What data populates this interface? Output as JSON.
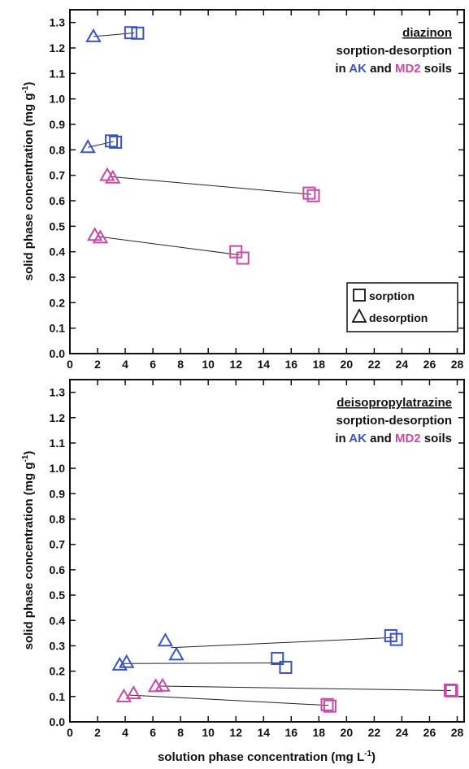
{
  "colors": {
    "AK": "#3a53c4",
    "MD2": "#c94aa6",
    "line": "#222222"
  },
  "shared": {
    "xlabel": "solution phase concentration (mg L",
    "xlabel_sup": "-1",
    "xlabel_end": ")",
    "ylabel": "solid phase concentration (mg g",
    "ylabel_sup": "-1",
    "ylabel_end": ")",
    "legend": {
      "sorption": "sorption",
      "desorption": "desorption"
    }
  },
  "chart_data": [
    {
      "type": "scatter",
      "title": "diazinon",
      "subtitle": "sorption-desorption",
      "subtitle2_pre": "in ",
      "subtitle2_ak": "AK",
      "subtitle2_mid": " and ",
      "subtitle2_md2": "MD2",
      "subtitle2_post": " soils",
      "xlim": [
        0,
        28.5
      ],
      "ylim": [
        0,
        1.35
      ],
      "xticks": [
        "0",
        "2",
        "4",
        "6",
        "8",
        "10",
        "12",
        "14",
        "16",
        "18",
        "20",
        "22",
        "24",
        "26",
        "28"
      ],
      "yticks": [
        "0.0",
        "0.1",
        "0.2",
        "0.3",
        "0.4",
        "0.5",
        "0.6",
        "0.7",
        "0.8",
        "0.9",
        "1.0",
        "1.1",
        "1.2",
        "1.3"
      ],
      "legend_position": "bottom-right",
      "groups": [
        {
          "soil": "AK",
          "desorption": [
            [
              1.7,
              1.245
            ]
          ],
          "sorption": [
            [
              4.4,
              1.26
            ],
            [
              4.9,
              1.258
            ]
          ]
        },
        {
          "soil": "AK",
          "desorption": [
            [
              1.3,
              0.81
            ]
          ],
          "sorption": [
            [
              3.0,
              0.835
            ],
            [
              3.3,
              0.83
            ]
          ]
        },
        {
          "soil": "MD2",
          "desorption": [
            [
              2.7,
              0.7
            ],
            [
              3.1,
              0.69
            ]
          ],
          "sorption": [
            [
              17.3,
              0.63
            ],
            [
              17.6,
              0.62
            ]
          ]
        },
        {
          "soil": "MD2",
          "desorption": [
            [
              1.8,
              0.465
            ],
            [
              2.2,
              0.455
            ]
          ],
          "sorption": [
            [
              12.0,
              0.4
            ],
            [
              12.5,
              0.375
            ]
          ]
        }
      ]
    },
    {
      "type": "scatter",
      "title": "deisopropylatrazine",
      "subtitle": "sorption-desorption",
      "subtitle2_pre": "in ",
      "subtitle2_ak": "AK",
      "subtitle2_mid": " and ",
      "subtitle2_md2": "MD2",
      "subtitle2_post": " soils",
      "xlim": [
        0,
        28.5
      ],
      "ylim": [
        0,
        1.35
      ],
      "xticks": [
        "0",
        "2",
        "4",
        "6",
        "8",
        "10",
        "12",
        "14",
        "16",
        "18",
        "20",
        "22",
        "24",
        "26",
        "28"
      ],
      "yticks": [
        "0.0",
        "0.1",
        "0.2",
        "0.3",
        "0.4",
        "0.5",
        "0.6",
        "0.7",
        "0.8",
        "0.9",
        "1.0",
        "1.1",
        "1.2",
        "1.3"
      ],
      "groups": [
        {
          "soil": "AK",
          "desorption": [
            [
              6.9,
              0.32
            ],
            [
              7.7,
              0.265
            ]
          ],
          "sorption": [
            [
              23.2,
              0.34
            ],
            [
              23.6,
              0.325
            ]
          ]
        },
        {
          "soil": "AK",
          "desorption": [
            [
              3.6,
              0.225
            ],
            [
              4.1,
              0.235
            ]
          ],
          "sorption": [
            [
              15.0,
              0.25
            ],
            [
              15.6,
              0.215
            ]
          ]
        },
        {
          "soil": "MD2",
          "desorption": [
            [
              6.2,
              0.14
            ],
            [
              6.7,
              0.142
            ]
          ],
          "sorption": [
            [
              27.5,
              0.125
            ],
            [
              27.6,
              0.122
            ]
          ]
        },
        {
          "soil": "MD2",
          "desorption": [
            [
              3.9,
              0.1
            ],
            [
              4.6,
              0.112
            ]
          ],
          "sorption": [
            [
              18.6,
              0.068
            ],
            [
              18.8,
              0.062
            ]
          ]
        }
      ]
    }
  ]
}
